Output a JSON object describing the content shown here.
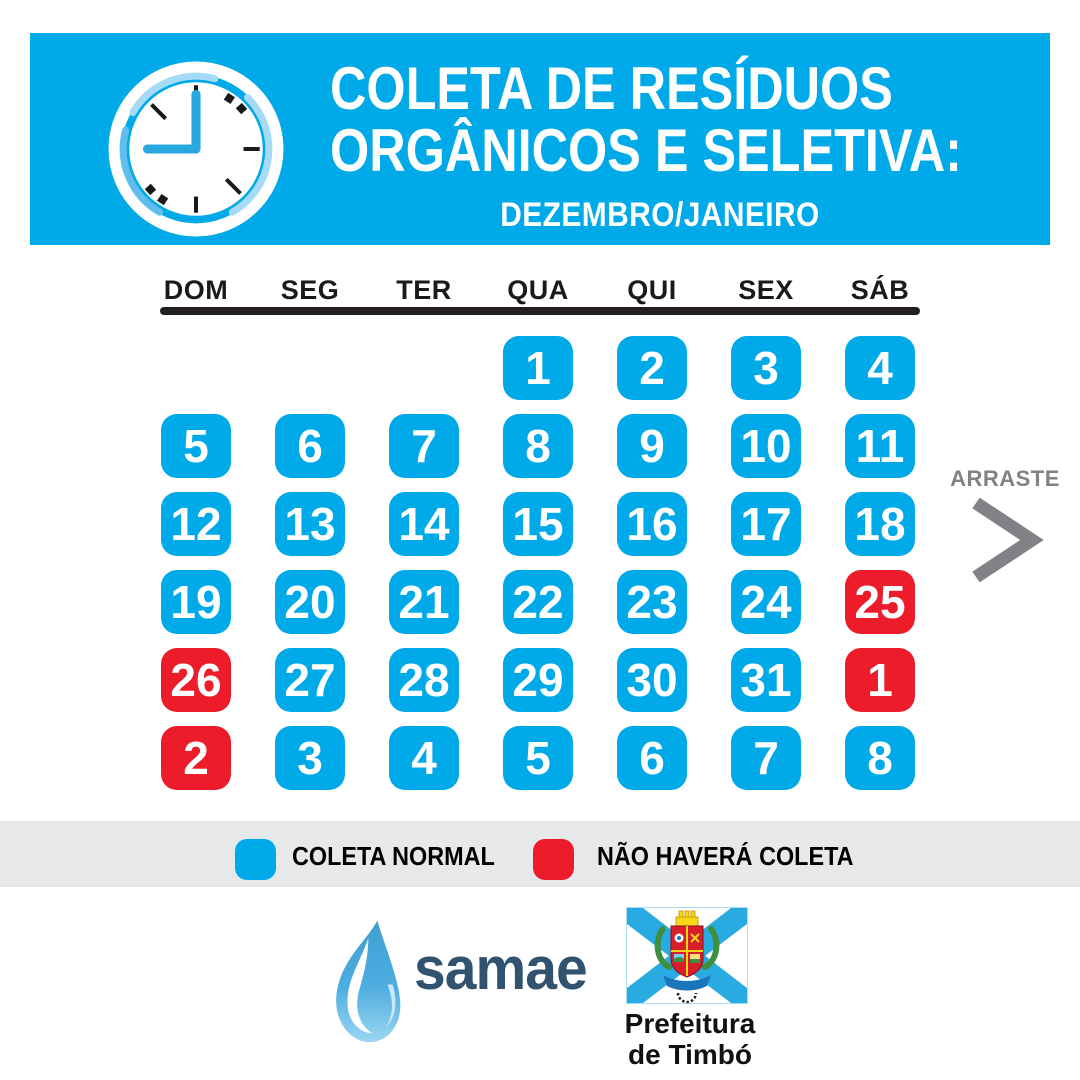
{
  "header": {
    "title_line1": "COLETA DE RESÍDUOS",
    "title_line2": "ORGÂNICOS E SELETIVA:",
    "subtitle": "DEZEMBRO/JANEIRO"
  },
  "calendar": {
    "day_headers": [
      "DOM",
      "SEG",
      "TER",
      "QUA",
      "QUI",
      "SEX",
      "SÁB"
    ],
    "cells": [
      {
        "day": "",
        "status": "empty"
      },
      {
        "day": "",
        "status": "empty"
      },
      {
        "day": "",
        "status": "empty"
      },
      {
        "day": "1",
        "status": "normal"
      },
      {
        "day": "2",
        "status": "normal"
      },
      {
        "day": "3",
        "status": "normal"
      },
      {
        "day": "4",
        "status": "normal"
      },
      {
        "day": "5",
        "status": "normal"
      },
      {
        "day": "6",
        "status": "normal"
      },
      {
        "day": "7",
        "status": "normal"
      },
      {
        "day": "8",
        "status": "normal"
      },
      {
        "day": "9",
        "status": "normal"
      },
      {
        "day": "10",
        "status": "normal"
      },
      {
        "day": "11",
        "status": "normal"
      },
      {
        "day": "12",
        "status": "normal"
      },
      {
        "day": "13",
        "status": "normal"
      },
      {
        "day": "14",
        "status": "normal"
      },
      {
        "day": "15",
        "status": "normal"
      },
      {
        "day": "16",
        "status": "normal"
      },
      {
        "day": "17",
        "status": "normal"
      },
      {
        "day": "18",
        "status": "normal"
      },
      {
        "day": "19",
        "status": "normal"
      },
      {
        "day": "20",
        "status": "normal"
      },
      {
        "day": "21",
        "status": "normal"
      },
      {
        "day": "22",
        "status": "normal"
      },
      {
        "day": "23",
        "status": "normal"
      },
      {
        "day": "24",
        "status": "normal"
      },
      {
        "day": "25",
        "status": "off"
      },
      {
        "day": "26",
        "status": "off"
      },
      {
        "day": "27",
        "status": "normal"
      },
      {
        "day": "28",
        "status": "normal"
      },
      {
        "day": "29",
        "status": "normal"
      },
      {
        "day": "30",
        "status": "normal"
      },
      {
        "day": "31",
        "status": "normal"
      },
      {
        "day": "1",
        "status": "off"
      },
      {
        "day": "2",
        "status": "off"
      },
      {
        "day": "3",
        "status": "normal"
      },
      {
        "day": "4",
        "status": "normal"
      },
      {
        "day": "5",
        "status": "normal"
      },
      {
        "day": "6",
        "status": "normal"
      },
      {
        "day": "7",
        "status": "normal"
      },
      {
        "day": "8",
        "status": "normal"
      }
    ]
  },
  "hint": {
    "label": "ARRASTE",
    "chevron_icon": "chevron-right-icon"
  },
  "legend": {
    "items": [
      {
        "label": "COLETA NORMAL",
        "status": "normal",
        "color": "#00A9E8"
      },
      {
        "label": "NÃO HAVERÁ COLETA",
        "status": "off",
        "color": "#EC1C2B"
      }
    ]
  },
  "footer": {
    "samae_wordmark": "samae",
    "prefeitura_line1": "Prefeitura",
    "prefeitura_line2": "de Timbó"
  },
  "colors": {
    "accent_blue": "#00A9E8",
    "alert_red": "#EC1C2B",
    "legend_band_gray": "#E7E8EA",
    "hint_gray": "#808285",
    "samae_navy": "#31536F",
    "flag_blue": "#29ABE2"
  }
}
